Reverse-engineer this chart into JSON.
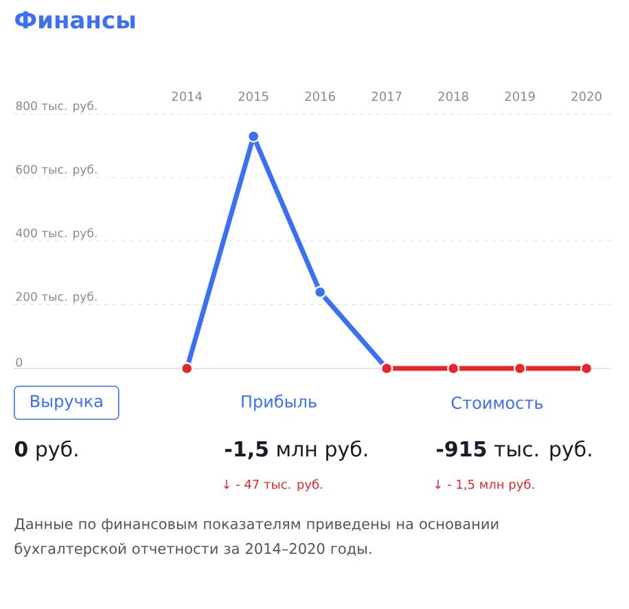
{
  "chart_data": [
    {
      "type": "line",
      "title": "Финансы",
      "categories": [
        "2014",
        "2015",
        "2016",
        "2017",
        "2018",
        "2019",
        "2020"
      ],
      "series": [
        {
          "color": "#3a6ff7",
          "colors": [
            "#e8262a",
            "#3a6ff7",
            "#3a6ff7",
            "#e8262a",
            null,
            null,
            null
          ],
          "values": [
            0,
            730,
            240,
            0,
            null,
            null,
            null
          ]
        },
        {
          "color": "#e8262a",
          "values": [
            null,
            null,
            null,
            0,
            0,
            0,
            0
          ]
        }
      ],
      "ylim": [
        0,
        800
      ],
      "yticks": [
        0,
        {
          "value": 200,
          "label": "200 тыс. руб."
        },
        {
          "value": 400,
          "label": "400 тыс. руб."
        },
        {
          "value": 600,
          "label": "600 тыс. руб."
        },
        {
          "value": 800,
          "label": "800 тыс. руб."
        }
      ],
      "grid": "y",
      "marker": "circle",
      "line_style": "solid"
    },
    {
      "type": "other",
      "annotations": [
        "Выручка",
        "Прибыль",
        "Стоимость",
        "**0** руб.",
        "**-1,5** млн руб.",
        "**-915** тыс. руб.",
        "↓ - 47 тыс. руб.",
        "↓ - 1,5 млн руб.",
        "Данные по финансовым показателям приведены на основании бухгалтерской отчетности за 2014–2020 годы."
      ]
    }
  ]
}
